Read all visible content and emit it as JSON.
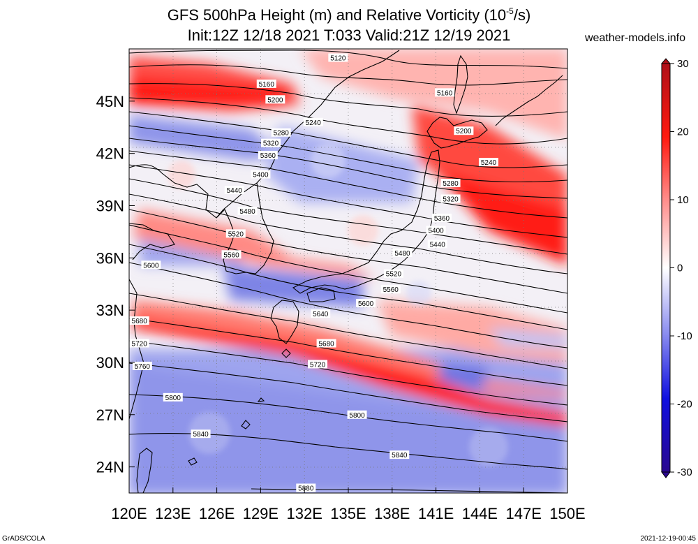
{
  "title": {
    "line1": "GFS 500hPa Height (m) and Relative Vorticity (10",
    "line1_sup": "-5",
    "line1_end": "/s)",
    "line2": "Init:12Z 12/18 2021 T:033 Valid:21Z 12/19 2021"
  },
  "site": "weather-models.info",
  "footer": {
    "left": "GrADS/COLA",
    "right": "2021-12-19-00:45"
  },
  "map": {
    "lon_range": [
      120,
      150
    ],
    "lat_range": [
      22.5,
      48
    ],
    "lon_ticks": [
      "120E",
      "123E",
      "126E",
      "129E",
      "132E",
      "135E",
      "138E",
      "141E",
      "144E",
      "147E",
      "150E"
    ],
    "lat_ticks": [
      "24N",
      "27N",
      "30N",
      "33N",
      "36N",
      "39N",
      "42N",
      "45N"
    ],
    "contour_labels": [
      {
        "text": "5120",
        "lon": 134.3,
        "lat": 47.5
      },
      {
        "text": "5160",
        "lon": 129.4,
        "lat": 46.0
      },
      {
        "text": "5160",
        "lon": 141.6,
        "lat": 45.5
      },
      {
        "text": "5200",
        "lon": 130.0,
        "lat": 45.1
      },
      {
        "text": "5200",
        "lon": 142.9,
        "lat": 43.3
      },
      {
        "text": "5240",
        "lon": 132.6,
        "lat": 43.8
      },
      {
        "text": "5240",
        "lon": 144.6,
        "lat": 41.5
      },
      {
        "text": "5280",
        "lon": 130.4,
        "lat": 43.2
      },
      {
        "text": "5280",
        "lon": 142.0,
        "lat": 40.3
      },
      {
        "text": "5320",
        "lon": 129.7,
        "lat": 42.6
      },
      {
        "text": "5320",
        "lon": 142.0,
        "lat": 39.4
      },
      {
        "text": "5360",
        "lon": 129.5,
        "lat": 41.9
      },
      {
        "text": "5360",
        "lon": 141.4,
        "lat": 38.3
      },
      {
        "text": "5400",
        "lon": 129.0,
        "lat": 40.8
      },
      {
        "text": "5400",
        "lon": 141.0,
        "lat": 37.6
      },
      {
        "text": "5440",
        "lon": 127.2,
        "lat": 39.9
      },
      {
        "text": "5440",
        "lon": 141.1,
        "lat": 36.8
      },
      {
        "text": "5480",
        "lon": 128.1,
        "lat": 38.7
      },
      {
        "text": "5480",
        "lon": 138.7,
        "lat": 36.3
      },
      {
        "text": "5520",
        "lon": 127.3,
        "lat": 37.4
      },
      {
        "text": "5520",
        "lon": 138.1,
        "lat": 35.1
      },
      {
        "text": "5560",
        "lon": 127.0,
        "lat": 36.2
      },
      {
        "text": "5560",
        "lon": 137.9,
        "lat": 34.2
      },
      {
        "text": "5600",
        "lon": 121.5,
        "lat": 35.6
      },
      {
        "text": "5600",
        "lon": 136.2,
        "lat": 33.4
      },
      {
        "text": "5640",
        "lon": 133.1,
        "lat": 32.8
      },
      {
        "text": "5680",
        "lon": 120.7,
        "lat": 32.4
      },
      {
        "text": "5680",
        "lon": 133.5,
        "lat": 31.1
      },
      {
        "text": "5720",
        "lon": 120.7,
        "lat": 31.1
      },
      {
        "text": "5720",
        "lon": 132.9,
        "lat": 29.9
      },
      {
        "text": "5760",
        "lon": 120.9,
        "lat": 29.8
      },
      {
        "text": "5800",
        "lon": 123.0,
        "lat": 28.0
      },
      {
        "text": "5800",
        "lon": 135.6,
        "lat": 27.0
      },
      {
        "text": "5840",
        "lon": 124.9,
        "lat": 25.9
      },
      {
        "text": "5840",
        "lon": 138.5,
        "lat": 24.7
      },
      {
        "text": "5880",
        "lon": 132.1,
        "lat": 22.8
      }
    ]
  },
  "colorbar": {
    "ticks": [
      "30",
      "20",
      "10",
      "0",
      "-10",
      "-20",
      "-30"
    ],
    "range": [
      -30,
      30
    ],
    "colors": {
      "max": "#b01018",
      "pos": "#ff1a10",
      "zero": "#ffffff",
      "neg": "#1010e0",
      "min": "#2a0890"
    }
  }
}
